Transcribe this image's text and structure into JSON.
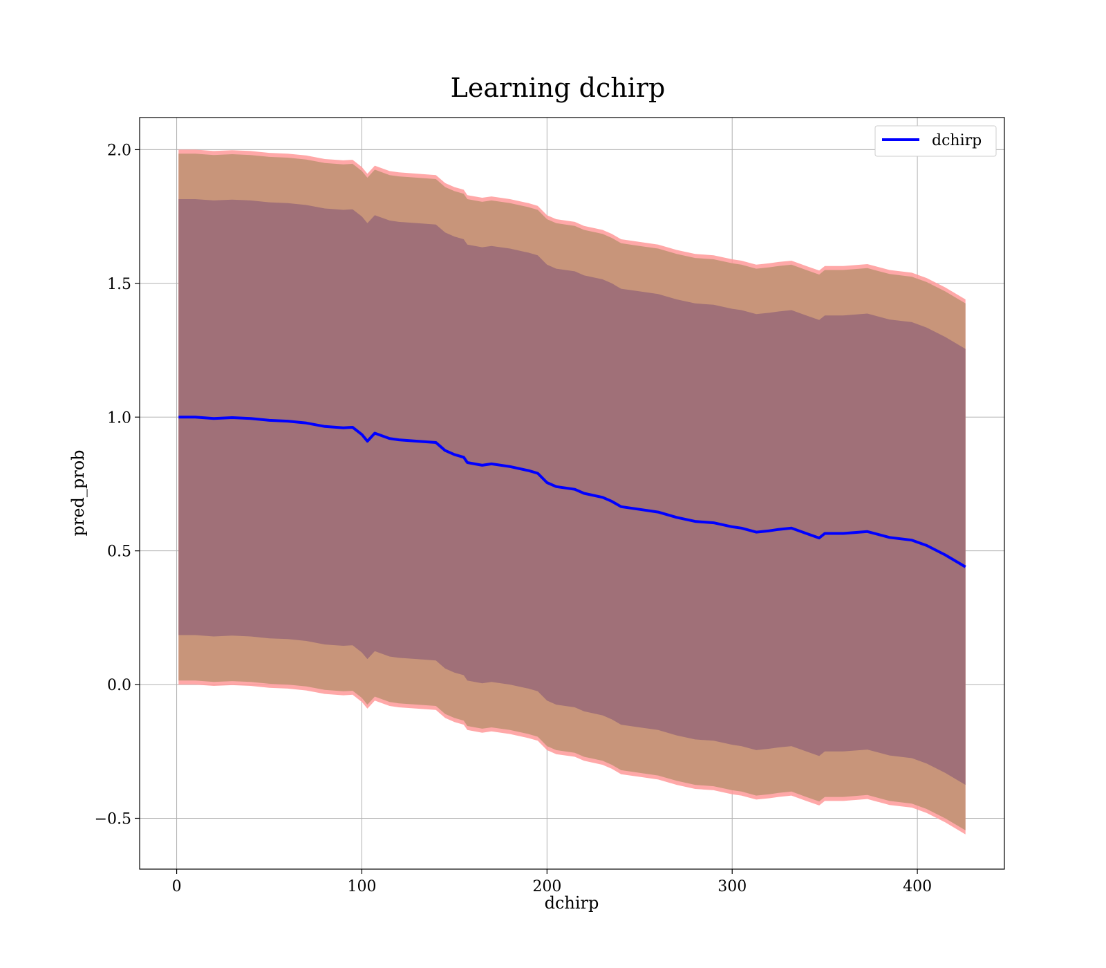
{
  "chart_data": {
    "type": "line",
    "title": "Learning dchirp",
    "xlabel": "dchirp",
    "ylabel": "pred_prob",
    "xlim": [
      -20,
      447
    ],
    "ylim": [
      -0.69,
      2.12
    ],
    "xticks": [
      0,
      100,
      200,
      300,
      400
    ],
    "xtick_labels": [
      "0",
      "100",
      "200",
      "300",
      "400"
    ],
    "yticks": [
      -0.5,
      0.0,
      0.5,
      1.0,
      1.5,
      2.0
    ],
    "ytick_labels": [
      "−0.5",
      "0.0",
      "0.5",
      "1.0",
      "1.5",
      "2.0"
    ],
    "grid": true,
    "legend": {
      "position": "top-right",
      "entries": [
        "dchirp"
      ]
    },
    "series": [
      {
        "name": "dchirp",
        "color": "#0000ff",
        "x": [
          1,
          10,
          20,
          30,
          40,
          50,
          60,
          70,
          80,
          90,
          95,
          100,
          103,
          107,
          115,
          120,
          130,
          140,
          145,
          150,
          155,
          157,
          165,
          170,
          180,
          190,
          195,
          200,
          205,
          215,
          220,
          230,
          235,
          240,
          250,
          260,
          270,
          280,
          290,
          300,
          305,
          313,
          320,
          325,
          332,
          340,
          347,
          350,
          360,
          373,
          385,
          397,
          405,
          415,
          426
        ],
        "y": [
          1.0,
          1.0,
          0.995,
          0.998,
          0.995,
          0.988,
          0.985,
          0.978,
          0.965,
          0.96,
          0.962,
          0.935,
          0.91,
          0.94,
          0.92,
          0.915,
          0.91,
          0.905,
          0.875,
          0.86,
          0.85,
          0.83,
          0.82,
          0.825,
          0.815,
          0.8,
          0.79,
          0.755,
          0.74,
          0.73,
          0.715,
          0.7,
          0.685,
          0.665,
          0.655,
          0.645,
          0.625,
          0.61,
          0.605,
          0.59,
          0.585,
          0.57,
          0.575,
          0.58,
          0.585,
          0.565,
          0.548,
          0.565,
          0.565,
          0.572,
          0.55,
          0.54,
          0.52,
          0.485,
          0.44
        ],
        "outer_band": {
          "color": "#ff9999",
          "upper_offset": 1.0,
          "lower_offset": 1.0
        },
        "middle_band": {
          "color": "#c8957a",
          "upper_offset": 0.985,
          "lower_offset": 0.985
        },
        "inner_band": {
          "color": "#a07078",
          "upper_offset": 0.815,
          "lower_offset": 0.815
        }
      }
    ]
  }
}
